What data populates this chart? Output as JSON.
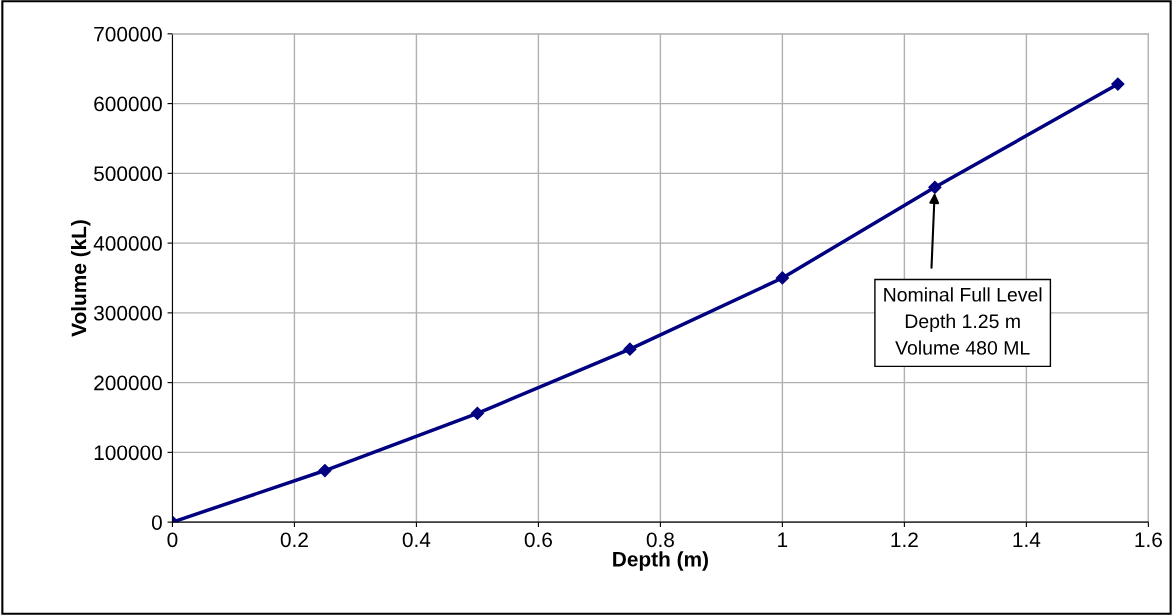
{
  "chart_data": {
    "type": "line",
    "xlabel": "Depth (m)",
    "ylabel": "Volume (kL)",
    "x": [
      0,
      0.25,
      0.5,
      0.75,
      1,
      1.25,
      1.55
    ],
    "series": [
      {
        "color": "#000080",
        "values": [
          0,
          74000,
          156000,
          248000,
          350000,
          480000,
          628000
        ]
      }
    ],
    "xlim": [
      0,
      1.6
    ],
    "xticks": [
      0,
      0.2,
      0.4,
      0.6,
      0.8,
      1,
      1.2,
      1.4,
      1.6
    ],
    "ylim": [
      0,
      700000
    ],
    "yticks": [
      0,
      100000,
      200000,
      300000,
      400000,
      500000,
      600000,
      700000
    ],
    "grid": true,
    "marker": "diamond",
    "line_style": "solid",
    "legend": false,
    "annotations": [
      {
        "text": "Nominal Full Level\nDepth 1.25 m\nVolume 480 ML",
        "x": 1.25,
        "y": 480000
      }
    ]
  }
}
